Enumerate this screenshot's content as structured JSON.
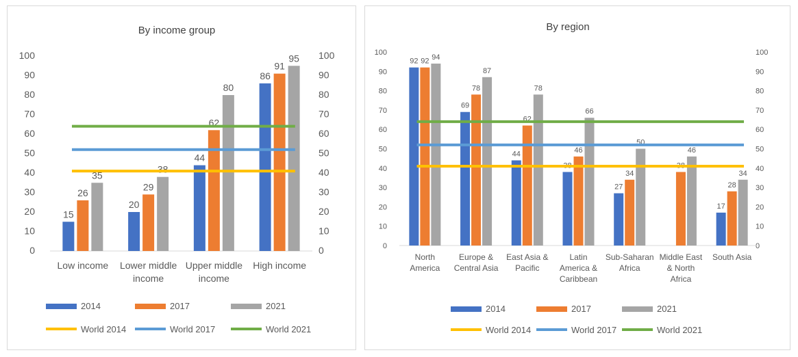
{
  "colors": {
    "s2014": "#4472C4",
    "s2017": "#ED7D31",
    "s2021": "#A5A5A5",
    "w2014": "#FFC000",
    "w2017": "#5B9BD5",
    "w2021": "#70AD47",
    "axis_text": "#595959",
    "grid": "#d9d9d9"
  },
  "chart_data": [
    {
      "type": "bar",
      "title": "By income group",
      "categories": [
        [
          "Low income"
        ],
        [
          "Lower middle",
          "income"
        ],
        [
          "Upper middle",
          "income"
        ],
        [
          "High income"
        ]
      ],
      "series": [
        {
          "name": "2014",
          "values": [
            15,
            20,
            44,
            86
          ]
        },
        {
          "name": "2017",
          "values": [
            26,
            29,
            62,
            91
          ]
        },
        {
          "name": "2021",
          "values": [
            35,
            38,
            80,
            95
          ]
        }
      ],
      "reference_lines": [
        {
          "name": "World 2014",
          "value": 41
        },
        {
          "name": "World 2017",
          "value": 52
        },
        {
          "name": "World 2021",
          "value": 64
        }
      ],
      "ylim": [
        0,
        100
      ],
      "yticks": [
        0,
        10,
        20,
        30,
        40,
        50,
        60,
        70,
        80,
        90,
        100
      ],
      "secondary_axis": true,
      "grid": false,
      "legend_position": "bottom"
    },
    {
      "type": "bar",
      "title": "By region",
      "categories": [
        [
          "North",
          "America"
        ],
        [
          "Europe &",
          "Central Asia"
        ],
        [
          "East Asia &",
          "Pacific"
        ],
        [
          "Latin",
          "America &",
          "Caribbean"
        ],
        [
          "Sub-Saharan",
          "Africa"
        ],
        [
          "Middle East",
          "& North",
          "Africa"
        ],
        [
          "South Asia"
        ]
      ],
      "series": [
        {
          "name": "2014",
          "values": [
            92,
            69,
            44,
            38,
            27,
            null,
            17
          ]
        },
        {
          "name": "2017",
          "values": [
            92,
            78,
            62,
            46,
            34,
            38,
            28
          ]
        },
        {
          "name": "2021",
          "values": [
            94,
            87,
            78,
            66,
            50,
            46,
            34
          ]
        }
      ],
      "reference_lines": [
        {
          "name": "World 2014",
          "value": 41
        },
        {
          "name": "World 2017",
          "value": 52
        },
        {
          "name": "World 2021",
          "value": 64
        }
      ],
      "ylim": [
        0,
        100
      ],
      "yticks": [
        0,
        10,
        20,
        30,
        40,
        50,
        60,
        70,
        80,
        90,
        100
      ],
      "secondary_axis": true,
      "grid": false,
      "legend_position": "bottom"
    }
  ]
}
